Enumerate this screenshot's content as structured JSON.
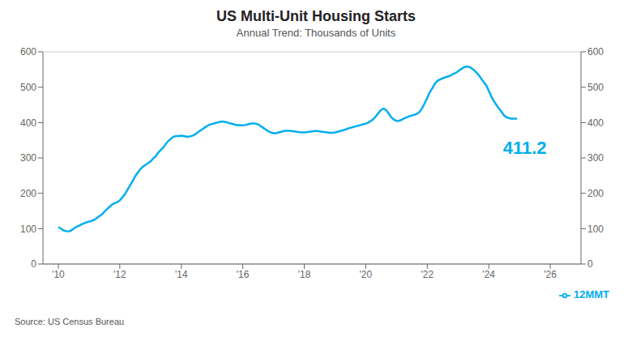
{
  "chart_data": {
    "type": "line",
    "title": "US Multi-Unit Housing Starts",
    "subtitle": "Annual Trend: Thousands of Units",
    "source": "Source: US Census Bureau",
    "annotation": "411.2",
    "x": [
      2010.0,
      2010.08,
      2010.17,
      2010.25,
      2010.33,
      2010.42,
      2010.5,
      2010.58,
      2010.67,
      2010.75,
      2010.83,
      2010.92,
      2011.0,
      2011.08,
      2011.17,
      2011.25,
      2011.33,
      2011.42,
      2011.5,
      2011.58,
      2011.67,
      2011.75,
      2011.83,
      2011.92,
      2012.0,
      2012.08,
      2012.17,
      2012.25,
      2012.33,
      2012.42,
      2012.5,
      2012.58,
      2012.67,
      2012.75,
      2012.83,
      2012.92,
      2013.0,
      2013.08,
      2013.17,
      2013.25,
      2013.33,
      2013.42,
      2013.5,
      2013.58,
      2013.67,
      2013.75,
      2013.83,
      2013.92,
      2014.0,
      2014.08,
      2014.17,
      2014.25,
      2014.33,
      2014.42,
      2014.5,
      2014.58,
      2014.67,
      2014.75,
      2014.83,
      2014.92,
      2015.0,
      2015.08,
      2015.17,
      2015.25,
      2015.33,
      2015.42,
      2015.5,
      2015.58,
      2015.67,
      2015.75,
      2015.83,
      2015.92,
      2016.0,
      2016.08,
      2016.17,
      2016.25,
      2016.33,
      2016.42,
      2016.5,
      2016.58,
      2016.67,
      2016.75,
      2016.83,
      2016.92,
      2017.0,
      2017.08,
      2017.17,
      2017.25,
      2017.33,
      2017.42,
      2017.5,
      2017.58,
      2017.67,
      2017.75,
      2017.83,
      2017.92,
      2018.0,
      2018.08,
      2018.17,
      2018.25,
      2018.33,
      2018.42,
      2018.5,
      2018.58,
      2018.67,
      2018.75,
      2018.83,
      2018.92,
      2019.0,
      2019.08,
      2019.17,
      2019.25,
      2019.33,
      2019.42,
      2019.5,
      2019.58,
      2019.67,
      2019.75,
      2019.83,
      2019.92,
      2020.0,
      2020.08,
      2020.17,
      2020.25,
      2020.33,
      2020.42,
      2020.5,
      2020.58,
      2020.67,
      2020.75,
      2020.83,
      2020.92,
      2021.0,
      2021.08,
      2021.17,
      2021.25,
      2021.33,
      2021.42,
      2021.5,
      2021.58,
      2021.67,
      2021.75,
      2021.83,
      2021.92,
      2022.0,
      2022.08,
      2022.17,
      2022.25,
      2022.33,
      2022.42,
      2022.5,
      2022.58,
      2022.67,
      2022.75,
      2022.83,
      2022.92,
      2023.0,
      2023.08,
      2023.17,
      2023.25,
      2023.33,
      2023.42,
      2023.5,
      2023.58,
      2023.67,
      2023.75,
      2023.83,
      2023.92,
      2024.0,
      2024.08,
      2024.17,
      2024.25,
      2024.33,
      2024.42,
      2024.5,
      2024.58,
      2024.67,
      2024.75,
      2024.83,
      2024.92
    ],
    "series": [
      {
        "name": "12MMT",
        "color": "#00AEEF",
        "values": [
          105,
          100,
          95,
          93,
          92,
          95,
          100,
          105,
          108,
          112,
          115,
          118,
          120,
          122,
          125,
          130,
          135,
          140,
          148,
          155,
          162,
          168,
          172,
          175,
          180,
          188,
          198,
          210,
          222,
          235,
          248,
          258,
          268,
          275,
          280,
          285,
          290,
          298,
          305,
          315,
          322,
          330,
          340,
          348,
          355,
          360,
          362,
          362,
          363,
          362,
          360,
          360,
          362,
          365,
          370,
          375,
          380,
          385,
          390,
          394,
          396,
          398,
          400,
          402,
          403,
          402,
          400,
          398,
          396,
          394,
          393,
          393,
          392,
          393,
          395,
          397,
          398,
          397,
          395,
          390,
          385,
          380,
          375,
          372,
          370,
          370,
          372,
          374,
          376,
          377,
          377,
          376,
          375,
          374,
          373,
          372,
          372,
          373,
          374,
          375,
          376,
          376,
          375,
          374,
          373,
          372,
          371,
          371,
          372,
          374,
          376,
          378,
          380,
          383,
          385,
          387,
          389,
          391,
          393,
          395,
          397,
          400,
          405,
          410,
          418,
          428,
          436,
          440,
          435,
          425,
          415,
          408,
          405,
          405,
          408,
          412,
          415,
          418,
          420,
          422,
          425,
          430,
          440,
          455,
          470,
          485,
          498,
          510,
          518,
          522,
          525,
          528,
          530,
          533,
          537,
          540,
          545,
          550,
          555,
          558,
          558,
          555,
          550,
          543,
          535,
          525,
          515,
          505,
          490,
          475,
          460,
          450,
          440,
          430,
          420,
          415,
          412,
          411,
          411,
          411
        ]
      }
    ],
    "xlim": [
      2009.5,
      2027.0
    ],
    "xticks": [
      {
        "value": 2010,
        "label": "'10"
      },
      {
        "value": 2012,
        "label": "'12"
      },
      {
        "value": 2014,
        "label": "'14"
      },
      {
        "value": 2016,
        "label": "'16"
      },
      {
        "value": 2018,
        "label": "'18"
      },
      {
        "value": 2020,
        "label": "'20"
      },
      {
        "value": 2022,
        "label": "'22"
      },
      {
        "value": 2024,
        "label": "'24"
      },
      {
        "value": 2026,
        "label": "'26"
      }
    ],
    "ylim": [
      0,
      600
    ],
    "yticks": [
      0,
      100,
      200,
      300,
      400,
      500,
      600
    ],
    "y2lim": [
      0,
      600
    ],
    "y2ticks": [
      0,
      100,
      200,
      300,
      400,
      500,
      600
    ],
    "grid": true,
    "legend": "lower right"
  }
}
